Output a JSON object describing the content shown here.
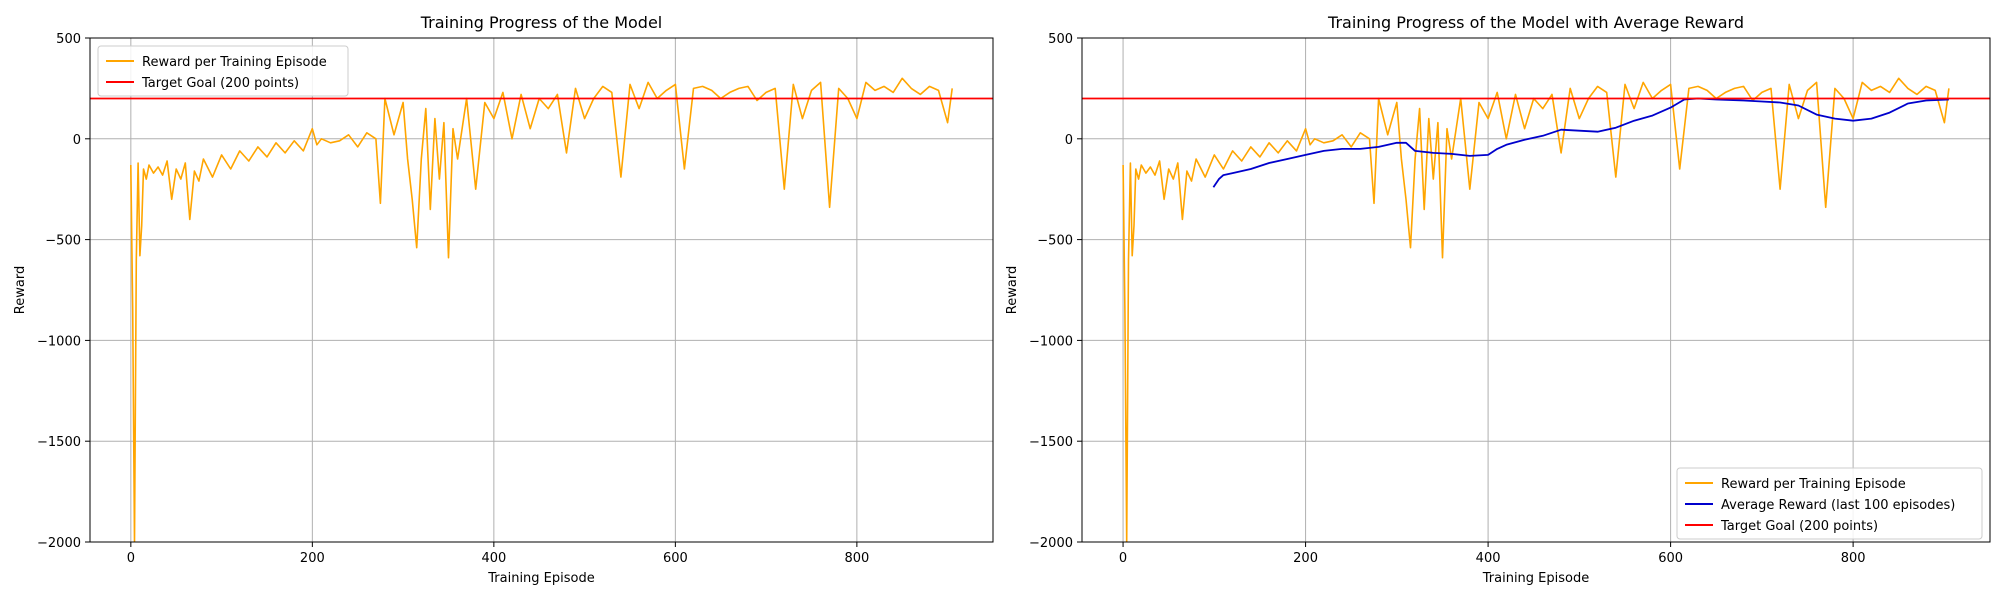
{
  "chart_data": [
    {
      "type": "line",
      "title": "Training Progress of the Model",
      "xlabel": "Training Episode",
      "ylabel": "Reward",
      "xlim": [
        -45,
        950
      ],
      "ylim": [
        -2000,
        500
      ],
      "xticks": [
        0,
        200,
        400,
        600,
        800
      ],
      "yticks": [
        500,
        0,
        -500,
        -1000,
        -1500,
        -2000
      ],
      "xtick_labels": [
        "0",
        "200",
        "400",
        "600",
        "800"
      ],
      "ytick_labels": [
        "500",
        "0",
        "−500",
        "−1000",
        "−1500",
        "−2000"
      ],
      "grid": true,
      "legend_position": "top-left",
      "series": [
        {
          "name": "Reward per Training Episode",
          "color": "#ffa500",
          "x": [
            0,
            2,
            4,
            6,
            8,
            10,
            12,
            14,
            17,
            20,
            25,
            30,
            35,
            40,
            45,
            50,
            55,
            60,
            65,
            70,
            75,
            80,
            90,
            100,
            110,
            120,
            130,
            140,
            150,
            160,
            170,
            180,
            190,
            200,
            205,
            210,
            220,
            230,
            240,
            250,
            260,
            270,
            275,
            280,
            290,
            300,
            305,
            310,
            315,
            320,
            325,
            330,
            335,
            340,
            345,
            350,
            355,
            360,
            370,
            380,
            390,
            400,
            410,
            420,
            430,
            440,
            450,
            460,
            470,
            480,
            490,
            500,
            510,
            520,
            530,
            540,
            550,
            560,
            570,
            580,
            590,
            600,
            610,
            620,
            630,
            640,
            650,
            660,
            670,
            680,
            690,
            700,
            710,
            720,
            730,
            740,
            750,
            760,
            770,
            780,
            790,
            800,
            810,
            820,
            830,
            840,
            850,
            860,
            870,
            880,
            890,
            900,
            905
          ],
          "values": [
            -130,
            -850,
            -2000,
            -600,
            -120,
            -580,
            -430,
            -150,
            -200,
            -130,
            -170,
            -140,
            -180,
            -110,
            -300,
            -150,
            -200,
            -120,
            -400,
            -160,
            -210,
            -100,
            -190,
            -80,
            -150,
            -60,
            -110,
            -40,
            -90,
            -20,
            -70,
            -10,
            -60,
            50,
            -30,
            0,
            -20,
            -10,
            20,
            -40,
            30,
            0,
            -320,
            200,
            20,
            180,
            -100,
            -300,
            -540,
            -100,
            150,
            -350,
            100,
            -200,
            80,
            -590,
            50,
            -100,
            200,
            -250,
            180,
            100,
            230,
            0,
            220,
            50,
            200,
            150,
            220,
            -70,
            250,
            100,
            200,
            260,
            230,
            -190,
            270,
            150,
            280,
            200,
            240,
            270,
            -150,
            250,
            260,
            240,
            200,
            230,
            250,
            260,
            190,
            230,
            250,
            -250,
            270,
            100,
            240,
            280,
            -340,
            250,
            200,
            100,
            280,
            240,
            260,
            230,
            300,
            250,
            220,
            260,
            240,
            80,
            250
          ]
        },
        {
          "name": "Target Goal (200 points)",
          "color": "#ff0000",
          "x": [
            -45,
            950
          ],
          "values": [
            200,
            200
          ]
        }
      ]
    },
    {
      "type": "line",
      "title": "Training Progress of the Model with Average Reward",
      "xlabel": "Training Episode",
      "ylabel": "Reward",
      "xlim": [
        -45,
        950
      ],
      "ylim": [
        -2000,
        500
      ],
      "xticks": [
        0,
        200,
        400,
        600,
        800
      ],
      "yticks": [
        500,
        0,
        -500,
        -1000,
        -1500,
        -2000
      ],
      "xtick_labels": [
        "0",
        "200",
        "400",
        "600",
        "800"
      ],
      "ytick_labels": [
        "500",
        "0",
        "−500",
        "−1000",
        "−1500",
        "−2000"
      ],
      "grid": true,
      "legend_position": "bottom-right",
      "series": [
        {
          "name": "Reward per Training Episode",
          "color": "#ffa500",
          "x": [
            0,
            2,
            4,
            6,
            8,
            10,
            12,
            14,
            17,
            20,
            25,
            30,
            35,
            40,
            45,
            50,
            55,
            60,
            65,
            70,
            75,
            80,
            90,
            100,
            110,
            120,
            130,
            140,
            150,
            160,
            170,
            180,
            190,
            200,
            205,
            210,
            220,
            230,
            240,
            250,
            260,
            270,
            275,
            280,
            290,
            300,
            305,
            310,
            315,
            320,
            325,
            330,
            335,
            340,
            345,
            350,
            355,
            360,
            370,
            380,
            390,
            400,
            410,
            420,
            430,
            440,
            450,
            460,
            470,
            480,
            490,
            500,
            510,
            520,
            530,
            540,
            550,
            560,
            570,
            580,
            590,
            600,
            610,
            620,
            630,
            640,
            650,
            660,
            670,
            680,
            690,
            700,
            710,
            720,
            730,
            740,
            750,
            760,
            770,
            780,
            790,
            800,
            810,
            820,
            830,
            840,
            850,
            860,
            870,
            880,
            890,
            900,
            905
          ],
          "values": [
            -130,
            -850,
            -2000,
            -600,
            -120,
            -580,
            -430,
            -150,
            -200,
            -130,
            -170,
            -140,
            -180,
            -110,
            -300,
            -150,
            -200,
            -120,
            -400,
            -160,
            -210,
            -100,
            -190,
            -80,
            -150,
            -60,
            -110,
            -40,
            -90,
            -20,
            -70,
            -10,
            -60,
            50,
            -30,
            0,
            -20,
            -10,
            20,
            -40,
            30,
            0,
            -320,
            200,
            20,
            180,
            -100,
            -300,
            -540,
            -100,
            150,
            -350,
            100,
            -200,
            80,
            -590,
            50,
            -100,
            200,
            -250,
            180,
            100,
            230,
            0,
            220,
            50,
            200,
            150,
            220,
            -70,
            250,
            100,
            200,
            260,
            230,
            -190,
            270,
            150,
            280,
            200,
            240,
            270,
            -150,
            250,
            260,
            240,
            200,
            230,
            250,
            260,
            190,
            230,
            250,
            -250,
            270,
            100,
            240,
            280,
            -340,
            250,
            200,
            100,
            280,
            240,
            260,
            230,
            300,
            250,
            220,
            260,
            240,
            80,
            250
          ]
        },
        {
          "name": "Average Reward (last 100 episodes)",
          "color": "#0000cc",
          "x": [
            99,
            105,
            110,
            120,
            140,
            160,
            180,
            200,
            220,
            240,
            260,
            280,
            300,
            310,
            320,
            340,
            360,
            380,
            400,
            410,
            420,
            440,
            460,
            480,
            500,
            520,
            540,
            560,
            580,
            600,
            615,
            630,
            650,
            680,
            700,
            720,
            740,
            760,
            780,
            800,
            820,
            840,
            860,
            880,
            905
          ],
          "values": [
            -240,
            -200,
            -180,
            -170,
            -150,
            -120,
            -100,
            -80,
            -60,
            -50,
            -50,
            -40,
            -20,
            -20,
            -60,
            -70,
            -75,
            -85,
            -80,
            -50,
            -30,
            -5,
            15,
            45,
            40,
            35,
            55,
            90,
            115,
            155,
            195,
            200,
            195,
            190,
            185,
            180,
            165,
            120,
            100,
            90,
            100,
            130,
            175,
            190,
            195
          ]
        },
        {
          "name": "Target Goal (200 points)",
          "color": "#ff0000",
          "x": [
            -45,
            950
          ],
          "values": [
            200,
            200
          ]
        }
      ]
    }
  ]
}
